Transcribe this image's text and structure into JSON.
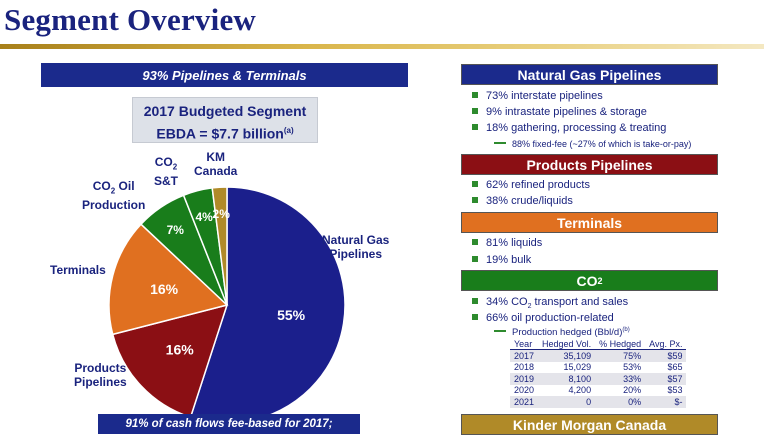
{
  "page": {
    "title": "Segment Overview"
  },
  "left": {
    "banner": "93% Pipelines & Terminals",
    "budget_line1": "2017 Budgeted Segment",
    "budget_line2": "EBDA = $7.7 billion",
    "budget_note": "(a)",
    "footer": "91% of cash flows fee-based for 2017;"
  },
  "chart_data": {
    "type": "pie",
    "slices": [
      {
        "name": "Natural Gas Pipelines",
        "value": 55,
        "label": "55%",
        "color": "#1b1f8c"
      },
      {
        "name": "Products Pipelines",
        "value": 16,
        "label": "16%",
        "color": "#8b0f14"
      },
      {
        "name": "Terminals",
        "value": 16,
        "label": "16%",
        "color": "#e07020"
      },
      {
        "name": "CO2 Oil Production",
        "value": 7,
        "label": "7%",
        "color": "#197d1b"
      },
      {
        "name": "CO2 S&T",
        "value": 4,
        "label": "4%",
        "color": "#197d1b"
      },
      {
        "name": "KM Canada",
        "value": 2,
        "label": "2%",
        "color": "#b08a28"
      }
    ],
    "category_labels": {
      "ngp_1": "Natural Gas",
      "ngp_2": "Pipelines",
      "pp_1": "Products",
      "pp_2": "Pipelines",
      "term": "Terminals",
      "co2op_1": "CO",
      "co2op_1b": "Oil",
      "co2op_2": "Production",
      "co2st_1": "CO",
      "co2st_2": "S&T",
      "kmc_1": "KM",
      "kmc_2": "Canada",
      "sub2": "2"
    }
  },
  "right": {
    "ngp": {
      "header": "Natural Gas Pipelines",
      "color": "#1b2a8c",
      "bullets": [
        "73% interstate pipelines",
        "9% intrastate pipelines & storage",
        "18% gathering, processing & treating"
      ],
      "sub": "88% fixed-fee (~27% of which is take-or-pay)"
    },
    "pp": {
      "header": "Products Pipelines",
      "color": "#8b0f14",
      "bullets": [
        "62% refined products",
        "38% crude/liquids"
      ]
    },
    "term": {
      "header": "Terminals",
      "color": "#e07020",
      "bullets": [
        "81% liquids",
        "19% bulk"
      ]
    },
    "co2": {
      "header_a": "CO",
      "header_sub": "2",
      "color": "#197d1b",
      "bullet1_a": "34% CO",
      "bullet1_sub": "2",
      "bullet1_b": " transport and sales",
      "bullet2": "66% oil production-related",
      "sub": "Production hedged (Bbl/d)",
      "sub_note": "(b)",
      "table": {
        "headers": [
          "Year",
          "Hedged Vol.",
          "% Hedged",
          "Avg. Px."
        ],
        "rows": [
          [
            "2017",
            "35,109",
            "75%",
            "$59"
          ],
          [
            "2018",
            "15,029",
            "53%",
            "$65"
          ],
          [
            "2019",
            "8,100",
            "33%",
            "$57"
          ],
          [
            "2020",
            "4,200",
            "20%",
            "$53"
          ],
          [
            "2021",
            "0",
            "0%",
            "$-"
          ]
        ]
      }
    },
    "kmc": {
      "header": "Kinder Morgan Canada",
      "color": "#b08a28"
    }
  }
}
